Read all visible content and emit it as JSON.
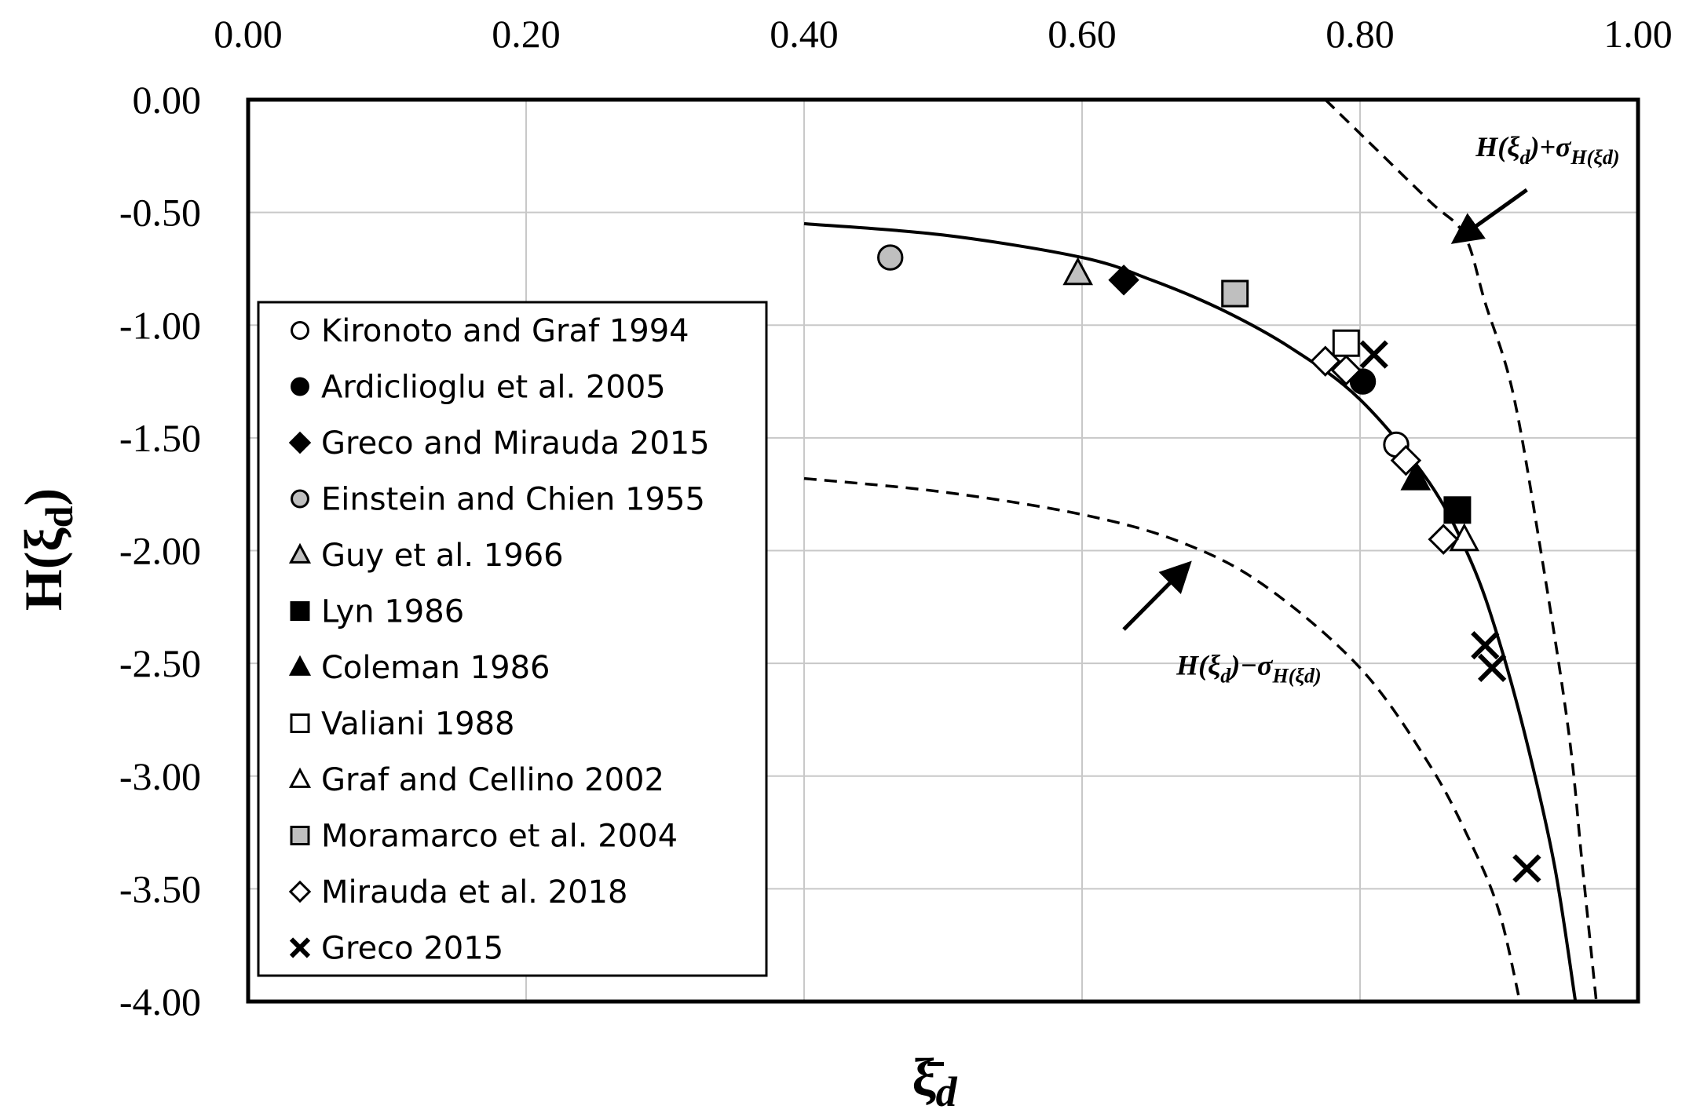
{
  "chart_data": {
    "type": "scatter",
    "title": "",
    "xlabel": "ξ̄d",
    "ylabel": "H(ξd)",
    "xlim": [
      0.0,
      1.0
    ],
    "ylim": [
      -4.0,
      0.0
    ],
    "x_ticks": [
      "0.00",
      "0.20",
      "0.40",
      "0.60",
      "0.80",
      "1.00"
    ],
    "y_ticks": [
      "0.00",
      "-0.50",
      "-1.00",
      "-1.50",
      "-2.00",
      "-2.50",
      "-3.00",
      "-3.50",
      "-4.00"
    ],
    "grid": true,
    "legend_position": "left",
    "series": [
      {
        "name": "Kironoto and Graf 1994",
        "marker": "circle",
        "fill": "#ffffff",
        "points": [
          [
            0.826,
            -1.53
          ]
        ]
      },
      {
        "name": "Ardiclioglu et al. 2005",
        "marker": "circle",
        "fill": "#000000",
        "points": [
          [
            0.802,
            -1.25
          ]
        ]
      },
      {
        "name": "Greco and Mirauda 2015",
        "marker": "diamond",
        "fill": "#000000",
        "points": [
          [
            0.63,
            -0.8
          ]
        ]
      },
      {
        "name": "Einstein and Chien 1955",
        "marker": "circle",
        "fill": "#bfbfbf",
        "points": [
          [
            0.462,
            -0.7
          ]
        ]
      },
      {
        "name": "Guy et al. 1966",
        "marker": "triangle",
        "fill": "#bfbfbf",
        "points": [
          [
            0.597,
            -0.77
          ]
        ]
      },
      {
        "name": "Lyn 1986",
        "marker": "square",
        "fill": "#000000",
        "points": [
          [
            0.87,
            -1.82
          ]
        ]
      },
      {
        "name": "Coleman 1986",
        "marker": "triangle",
        "fill": "#000000",
        "points": [
          [
            0.84,
            -1.68
          ]
        ]
      },
      {
        "name": "Valiani 1988",
        "marker": "square",
        "fill": "#ffffff",
        "points": [
          [
            0.79,
            -1.08
          ]
        ]
      },
      {
        "name": "Graf and Cellino 2002",
        "marker": "triangle",
        "fill": "#ffffff",
        "points": [
          [
            0.875,
            -1.95
          ]
        ]
      },
      {
        "name": "Moramarco et al. 2004",
        "marker": "square",
        "fill": "#bfbfbf",
        "points": [
          [
            0.71,
            -0.86
          ]
        ]
      },
      {
        "name": "Mirauda et al. 2018",
        "marker": "diamond",
        "fill": "#ffffff",
        "points": [
          [
            0.775,
            -1.16
          ],
          [
            0.79,
            -1.2
          ],
          [
            0.833,
            -1.6
          ],
          [
            0.86,
            -1.95
          ]
        ]
      },
      {
        "name": "Greco 2015",
        "marker": "cross",
        "fill": "#000000",
        "points": [
          [
            0.81,
            -1.13
          ],
          [
            0.89,
            -2.42
          ],
          [
            0.895,
            -2.52
          ],
          [
            0.92,
            -3.41
          ]
        ]
      }
    ],
    "curves": [
      {
        "name": "H(ξd)",
        "style": "solid",
        "points": [
          [
            0.4,
            -0.55
          ],
          [
            0.5,
            -0.6
          ],
          [
            0.6,
            -0.7
          ],
          [
            0.65,
            -0.8
          ],
          [
            0.7,
            -0.93
          ],
          [
            0.75,
            -1.1
          ],
          [
            0.8,
            -1.33
          ],
          [
            0.85,
            -1.7
          ],
          [
            0.88,
            -2.05
          ],
          [
            0.9,
            -2.4
          ],
          [
            0.92,
            -2.85
          ],
          [
            0.94,
            -3.4
          ],
          [
            0.955,
            -4.0
          ]
        ]
      },
      {
        "name": "H(ξd)+σ",
        "style": "dashed",
        "points": [
          [
            0.775,
            0.0
          ],
          [
            0.8,
            -0.15
          ],
          [
            0.85,
            -0.45
          ],
          [
            0.875,
            -0.6
          ],
          [
            0.89,
            -0.9
          ],
          [
            0.91,
            -1.3
          ],
          [
            0.93,
            -2.0
          ],
          [
            0.95,
            -2.8
          ],
          [
            0.96,
            -3.4
          ],
          [
            0.97,
            -4.0
          ]
        ]
      },
      {
        "name": "H(ξd)-σ",
        "style": "dashed",
        "points": [
          [
            0.4,
            -1.68
          ],
          [
            0.5,
            -1.74
          ],
          [
            0.6,
            -1.84
          ],
          [
            0.67,
            -1.96
          ],
          [
            0.73,
            -2.15
          ],
          [
            0.8,
            -2.52
          ],
          [
            0.85,
            -2.95
          ],
          [
            0.88,
            -3.3
          ],
          [
            0.9,
            -3.6
          ],
          [
            0.915,
            -4.0
          ]
        ]
      }
    ],
    "annotations": [
      {
        "text_main": "H(ξd)+σ",
        "text_sub": "H(ξd)",
        "x": 0.935,
        "y": -0.25,
        "arrow_from": [
          0.92,
          -0.4
        ],
        "arrow_to": [
          0.87,
          -0.62
        ]
      },
      {
        "text_main": "H(ξd)−σ",
        "text_sub": "H(ξd)",
        "x": 0.72,
        "y": -2.55,
        "arrow_from": [
          0.63,
          -2.35
        ],
        "arrow_to": [
          0.675,
          -2.07
        ]
      }
    ]
  }
}
